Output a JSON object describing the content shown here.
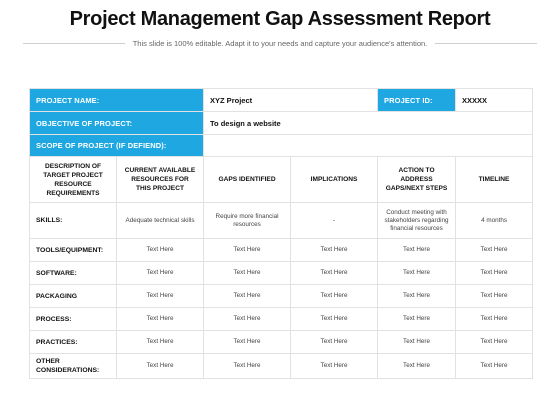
{
  "title": "Project Management Gap Assessment Report",
  "subtitle": "This slide is 100% editable. Adapt it to your needs and capture your audience's attention.",
  "info": {
    "project_name_label": "PROJECT NAME:",
    "project_name_value": "XYZ Project",
    "project_id_label": "PROJECT ID:",
    "project_id_value": "XXXXX",
    "objective_label": "OBJECTIVE OF PROJECT:",
    "objective_value": "To design a website",
    "scope_label": "SCOPE OF PROJECT (IF DEFIEND):"
  },
  "columns": [
    "DESCRIPTION OF TARGET PROJECT RESOURCE REQUIREMENTS",
    "CURRENT AVAILABLE RESOURCES FOR THIS PROJECT",
    "GAPS IDENTIFIED",
    "IMPLICATIONS",
    "ACTION TO ADDRESS GAPS/NEXT STEPS",
    "TIMELINE"
  ],
  "rows": [
    {
      "label": "SKILLS:",
      "cells": [
        "Adequate technical skills",
        "Require more financial resources",
        "-",
        "Conduct meeting with stakeholders regarding financial resources",
        "4 months"
      ]
    },
    {
      "label": "TOOLS/EQUIPMENT:",
      "cells": [
        "Text Here",
        "Text Here",
        "Text Here",
        "Text Here",
        "Text Here"
      ]
    },
    {
      "label": "SOFTWARE:",
      "cells": [
        "Text Here",
        "Text Here",
        "Text Here",
        "Text Here",
        "Text Here"
      ]
    },
    {
      "label": "PACKAGING",
      "cells": [
        "Text Here",
        "Text Here",
        "Text Here",
        "Text Here",
        "Text Here"
      ]
    },
    {
      "label": "PROCESS:",
      "cells": [
        "Text Here",
        "Text Here",
        "Text Here",
        "Text Here",
        "Text Here"
      ]
    },
    {
      "label": "PRACTICES:",
      "cells": [
        "Text Here",
        "Text Here",
        "Text Here",
        "Text Here",
        "Text Here"
      ]
    },
    {
      "label": "OTHER CONSIDERATIONS:",
      "cells": [
        "Text Here",
        "Text Here",
        "Text Here",
        "Text Here",
        "Text Here"
      ]
    }
  ]
}
